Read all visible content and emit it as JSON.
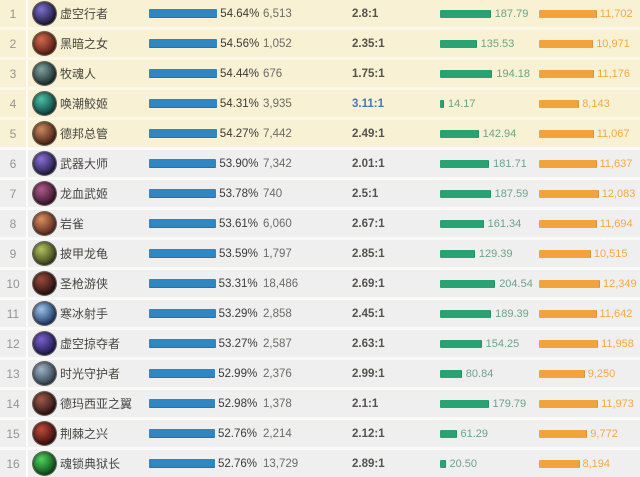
{
  "table": {
    "description_columns": [
      "rank",
      "champion",
      "win_rate",
      "games",
      "ratio",
      "green_metric",
      "orange_metric"
    ],
    "rows": [
      {
        "rank": "1",
        "name": "虚空行者",
        "win_rate_label": "54.64%",
        "win_rate": 54.64,
        "games": "6,513",
        "ratio": "2.8:1",
        "ratio_highlight": false,
        "green_label": "187.79",
        "green": 187.79,
        "orange_label": "11,702",
        "orange": 11702,
        "section": "top",
        "avatar_light": "#7b6fd0",
        "avatar_dark": "#1d1b38"
      },
      {
        "rank": "2",
        "name": "黑暗之女",
        "win_rate_label": "54.56%",
        "win_rate": 54.56,
        "games": "1,052",
        "ratio": "2.35:1",
        "ratio_highlight": false,
        "green_label": "135.53",
        "green": 135.53,
        "orange_label": "10,971",
        "orange": 10971,
        "section": "top",
        "avatar_light": "#d4684a",
        "avatar_dark": "#571f18"
      },
      {
        "rank": "3",
        "name": "牧魂人",
        "win_rate_label": "54.44%",
        "win_rate": 54.44,
        "games": "676",
        "ratio": "1.75:1",
        "ratio_highlight": false,
        "green_label": "194.18",
        "green": 194.18,
        "orange_label": "11,176",
        "orange": 11176,
        "section": "top",
        "avatar_light": "#7fa3a0",
        "avatar_dark": "#1e2e31"
      },
      {
        "rank": "4",
        "name": "唤潮鲛姬",
        "win_rate_label": "54.31%",
        "win_rate": 54.31,
        "games": "3,935",
        "ratio": "3.11:1",
        "ratio_highlight": true,
        "green_label": "14.17",
        "green": 14.17,
        "orange_label": "8,143",
        "orange": 8143,
        "section": "top",
        "avatar_light": "#49c2a4",
        "avatar_dark": "#123f41"
      },
      {
        "rank": "5",
        "name": "德邦总管",
        "win_rate_label": "54.27%",
        "win_rate": 54.27,
        "games": "7,442",
        "ratio": "2.49:1",
        "ratio_highlight": false,
        "green_label": "142.94",
        "green": 142.94,
        "orange_label": "11,067",
        "orange": 11067,
        "section": "top",
        "avatar_light": "#c98a5d",
        "avatar_dark": "#4a2317"
      },
      {
        "rank": "6",
        "name": "武器大师",
        "win_rate_label": "53.90%",
        "win_rate": 53.9,
        "games": "7,342",
        "ratio": "2.01:1",
        "ratio_highlight": false,
        "green_label": "181.71",
        "green": 181.71,
        "orange_label": "11,637",
        "orange": 11637,
        "section": "rest",
        "avatar_light": "#8a6fd8",
        "avatar_dark": "#241c44"
      },
      {
        "rank": "7",
        "name": "龙血武姬",
        "win_rate_label": "53.78%",
        "win_rate": 53.78,
        "games": "740",
        "ratio": "2.5:1",
        "ratio_highlight": false,
        "green_label": "187.59",
        "green": 187.59,
        "orange_label": "12,083",
        "orange": 12083,
        "section": "rest",
        "avatar_light": "#b05a8a",
        "avatar_dark": "#3a1530"
      },
      {
        "rank": "8",
        "name": "岩雀",
        "win_rate_label": "53.61%",
        "win_rate": 53.61,
        "games": "6,060",
        "ratio": "2.67:1",
        "ratio_highlight": false,
        "green_label": "161.34",
        "green": 161.34,
        "orange_label": "11,694",
        "orange": 11694,
        "section": "rest",
        "avatar_light": "#d98e5f",
        "avatar_dark": "#5a2a1e"
      },
      {
        "rank": "9",
        "name": "披甲龙龟",
        "win_rate_label": "53.59%",
        "win_rate": 53.59,
        "games": "1,797",
        "ratio": "2.85:1",
        "ratio_highlight": false,
        "green_label": "129.39",
        "green": 129.39,
        "orange_label": "10,515",
        "orange": 10515,
        "section": "rest",
        "avatar_light": "#b3c25e",
        "avatar_dark": "#3a421a"
      },
      {
        "rank": "10",
        "name": "圣枪游侠",
        "win_rate_label": "53.31%",
        "win_rate": 53.31,
        "games": "18,486",
        "ratio": "2.69:1",
        "ratio_highlight": false,
        "green_label": "204.54",
        "green": 204.54,
        "orange_label": "12,349",
        "orange": 12349,
        "section": "rest",
        "avatar_light": "#9a4a3a",
        "avatar_dark": "#2a1212"
      },
      {
        "rank": "11",
        "name": "寒冰射手",
        "win_rate_label": "53.29%",
        "win_rate": 53.29,
        "games": "2,858",
        "ratio": "2.45:1",
        "ratio_highlight": false,
        "green_label": "189.39",
        "green": 189.39,
        "orange_label": "11,642",
        "orange": 11642,
        "section": "rest",
        "avatar_light": "#9cc3e8",
        "avatar_dark": "#1f3a66"
      },
      {
        "rank": "12",
        "name": "虚空掠夺者",
        "win_rate_label": "53.27%",
        "win_rate": 53.27,
        "games": "2,587",
        "ratio": "2.63:1",
        "ratio_highlight": false,
        "green_label": "154.25",
        "green": 154.25,
        "orange_label": "11,958",
        "orange": 11958,
        "section": "rest",
        "avatar_light": "#7a5fd0",
        "avatar_dark": "#201a4a"
      },
      {
        "rank": "13",
        "name": "时光守护者",
        "win_rate_label": "52.99%",
        "win_rate": 52.99,
        "games": "2,376",
        "ratio": "2.99:1",
        "ratio_highlight": false,
        "green_label": "80.84",
        "green": 80.84,
        "orange_label": "9,250",
        "orange": 9250,
        "section": "rest",
        "avatar_light": "#9fb3c8",
        "avatar_dark": "#31424f"
      },
      {
        "rank": "14",
        "name": "德玛西亚之翼",
        "win_rate_label": "52.98%",
        "win_rate": 52.98,
        "games": "1,378",
        "ratio": "2.1:1",
        "ratio_highlight": false,
        "green_label": "179.79",
        "green": 179.79,
        "orange_label": "11,973",
        "orange": 11973,
        "section": "rest",
        "avatar_light": "#a05a4a",
        "avatar_dark": "#2e1414"
      },
      {
        "rank": "15",
        "name": "荆棘之兴",
        "win_rate_label": "52.76%",
        "win_rate": 52.76,
        "games": "2,214",
        "ratio": "2.12:1",
        "ratio_highlight": false,
        "green_label": "61.29",
        "green": 61.29,
        "orange_label": "9,772",
        "orange": 9772,
        "section": "rest",
        "avatar_light": "#c04a3a",
        "avatar_dark": "#3c0f0f"
      },
      {
        "rank": "16",
        "name": "魂锁典狱长",
        "win_rate_label": "52.76%",
        "win_rate": 52.76,
        "games": "13,729",
        "ratio": "2.89:1",
        "ratio_highlight": false,
        "green_label": "20.50",
        "green": 20.5,
        "orange_label": "8,194",
        "orange": 8194,
        "section": "rest",
        "avatar_light": "#4fd35f",
        "avatar_dark": "#0d4d18"
      }
    ]
  },
  "colors": {
    "win_bar": "#2e86c3",
    "green_bar": "#29a373",
    "orange_bar": "#f2a33c",
    "top_row_bg": "#f8f1d3",
    "row_bg": "#efeff0",
    "ratio_highlight": "#4a77b8"
  }
}
